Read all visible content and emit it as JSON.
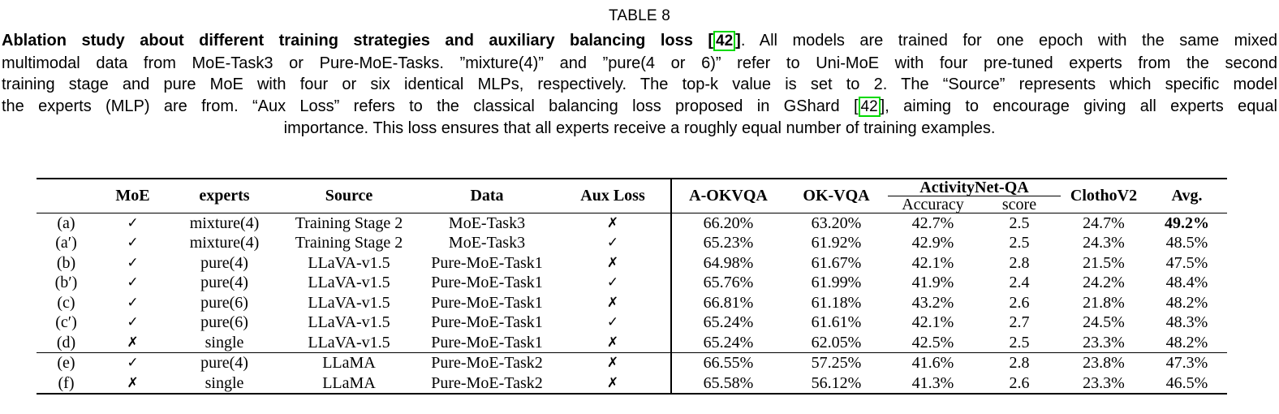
{
  "title": "TABLE 8",
  "caption": {
    "ref_box_color": "#00d900",
    "lines": [
      {
        "align": "justify",
        "segments": [
          {
            "text": "Ablation study about different training strategies and auxiliary balancing loss ",
            "bold": true
          },
          {
            "text": "[",
            "bold": true
          },
          {
            "text": "42",
            "bold": true,
            "ref": true
          },
          {
            "text": "]",
            "bold": true
          },
          {
            "text": ". All models are trained for one epoch with the same mixed"
          }
        ]
      },
      {
        "align": "justify",
        "segments": [
          {
            "text": "multimodal data from MoE-Task3 or Pure-MoE-Tasks. ”mixture(4)” and ”pure(4 or 6)” refer to Uni-MoE with four pre-tuned experts from the second"
          }
        ]
      },
      {
        "align": "justify",
        "segments": [
          {
            "text": "training stage and pure MoE with four or six identical MLPs, respectively. The top-k value is set to 2. The “Source” represents which specific model"
          }
        ]
      },
      {
        "align": "justify",
        "segments": [
          {
            "text": "the experts (MLP) are from. “Aux Loss” refers to the classical balancing loss proposed in GShard "
          },
          {
            "text": "["
          },
          {
            "text": "42",
            "ref": true
          },
          {
            "text": "]"
          },
          {
            "text": ", aiming to encourage giving all experts equal"
          }
        ]
      },
      {
        "align": "center",
        "segments": [
          {
            "text": "importance. This loss ensures that all experts receive a roughly equal number of training examples."
          }
        ]
      }
    ]
  },
  "table": {
    "headers": {
      "moe": "MoE",
      "experts": "experts",
      "source": "Source",
      "data": "Data",
      "aux_loss": "Aux Loss",
      "a_okvqa": "A-OKVQA",
      "ok_vqa": "OK-VQA",
      "activitynet": "ActivityNet-QA",
      "accuracy": "Accuracy",
      "score": "score",
      "clothov2": "ClothoV2",
      "avg": "Avg."
    },
    "rows": [
      {
        "label": "(a)",
        "moe": "✓",
        "experts": "mixture(4)",
        "source": "Training Stage 2",
        "data": "MoE-Task3",
        "aux_loss": "✗",
        "a_okvqa": "66.20%",
        "ok_vqa": "63.20%",
        "an_accuracy": "42.7%",
        "an_score": "2.5",
        "clothov2": "24.7%",
        "avg": "49.2%",
        "avg_bold": true
      },
      {
        "label": "(a′)",
        "moe": "✓",
        "experts": "mixture(4)",
        "source": "Training Stage 2",
        "data": "MoE-Task3",
        "aux_loss": "✓",
        "a_okvqa": "65.23%",
        "ok_vqa": "61.92%",
        "an_accuracy": "42.9%",
        "an_score": "2.5",
        "clothov2": "24.3%",
        "avg": "48.5%"
      },
      {
        "label": "(b)",
        "moe": "✓",
        "experts": "pure(4)",
        "source": "LLaVA-v1.5",
        "data": "Pure-MoE-Task1",
        "aux_loss": "✗",
        "a_okvqa": "64.98%",
        "ok_vqa": "61.67%",
        "an_accuracy": "42.1%",
        "an_score": "2.8",
        "clothov2": "21.5%",
        "avg": "47.5%"
      },
      {
        "label": "(b′)",
        "moe": "✓",
        "experts": "pure(4)",
        "source": "LLaVA-v1.5",
        "data": "Pure-MoE-Task1",
        "aux_loss": "✓",
        "a_okvqa": "65.76%",
        "ok_vqa": "61.99%",
        "an_accuracy": "41.9%",
        "an_score": "2.4",
        "clothov2": "24.2%",
        "avg": "48.4%"
      },
      {
        "label": "(c)",
        "moe": "✓",
        "experts": "pure(6)",
        "source": "LLaVA-v1.5",
        "data": "Pure-MoE-Task1",
        "aux_loss": "✗",
        "a_okvqa": "66.81%",
        "ok_vqa": "61.18%",
        "an_accuracy": "43.2%",
        "an_score": "2.6",
        "clothov2": "21.8%",
        "avg": "48.2%"
      },
      {
        "label": "(c′)",
        "moe": "✓",
        "experts": "pure(6)",
        "source": "LLaVA-v1.5",
        "data": "Pure-MoE-Task1",
        "aux_loss": "✓",
        "a_okvqa": "65.24%",
        "ok_vqa": "61.61%",
        "an_accuracy": "42.1%",
        "an_score": "2.7",
        "clothov2": "24.5%",
        "avg": "48.3%"
      },
      {
        "label": "(d)",
        "moe": "✗",
        "experts": "single",
        "source": "LLaVA-v1.5",
        "data": "Pure-MoE-Task1",
        "aux_loss": "✗",
        "a_okvqa": "65.24%",
        "ok_vqa": "62.05%",
        "an_accuracy": "42.5%",
        "an_score": "2.5",
        "clothov2": "23.3%",
        "avg": "48.2%"
      },
      {
        "label": "(e)",
        "moe": "✓",
        "experts": "pure(4)",
        "source": "LLaMA",
        "data": "Pure-MoE-Task2",
        "aux_loss": "✗",
        "a_okvqa": "66.55%",
        "ok_vqa": "57.25%",
        "an_accuracy": "41.6%",
        "an_score": "2.8",
        "clothov2": "23.8%",
        "avg": "47.3%",
        "rule_above": true
      },
      {
        "label": "(f)",
        "moe": "✗",
        "experts": "single",
        "source": "LLaMA",
        "data": "Pure-MoE-Task2",
        "aux_loss": "✗",
        "a_okvqa": "65.58%",
        "ok_vqa": "56.12%",
        "an_accuracy": "41.3%",
        "an_score": "2.6",
        "clothov2": "23.3%",
        "avg": "46.5%"
      }
    ]
  }
}
